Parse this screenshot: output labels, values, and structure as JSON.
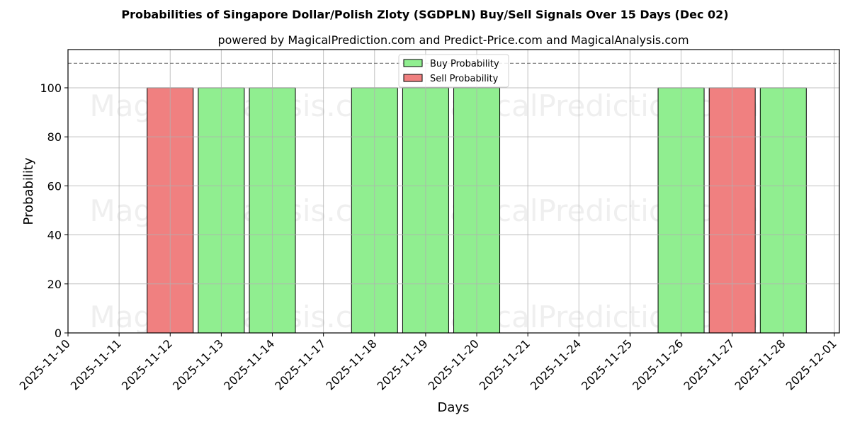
{
  "chart_data": {
    "type": "bar",
    "title": "Probabilities of Singapore Dollar/Polish Zloty (SGDPLN) Buy/Sell Signals Over 15 Days (Dec 02)",
    "subtitle": "powered by MagicalPrediction.com and Predict-Price.com and MagicalAnalysis.com",
    "xlabel": "Days",
    "ylabel": "Probability",
    "ylim": [
      0,
      115.6
    ],
    "yticks": [
      0,
      20,
      40,
      60,
      80,
      100
    ],
    "grid": true,
    "threshold_line": 110,
    "legend_position": "upper center",
    "categories": [
      "2025-11-10",
      "2025-11-11",
      "2025-11-12",
      "2025-11-13",
      "2025-11-14",
      "2025-11-17",
      "2025-11-18",
      "2025-11-19",
      "2025-11-20",
      "2025-11-21",
      "2025-11-24",
      "2025-11-25",
      "2025-11-26",
      "2025-11-27",
      "2025-11-28",
      "2025-12-01"
    ],
    "series": [
      {
        "name": "Buy Probability",
        "color": "#90ee90",
        "values": [
          0,
          0,
          0,
          100,
          100,
          0,
          100,
          100,
          100,
          0,
          0,
          0,
          100,
          0,
          100,
          0
        ]
      },
      {
        "name": "Sell Probability",
        "color": "#f08080",
        "values": [
          0,
          0,
          100,
          0,
          0,
          0,
          0,
          0,
          0,
          0,
          0,
          0,
          0,
          100,
          0,
          0
        ]
      }
    ],
    "watermarks": [
      "MagicalAnalysis.com",
      "MagicalPrediction.com"
    ]
  }
}
